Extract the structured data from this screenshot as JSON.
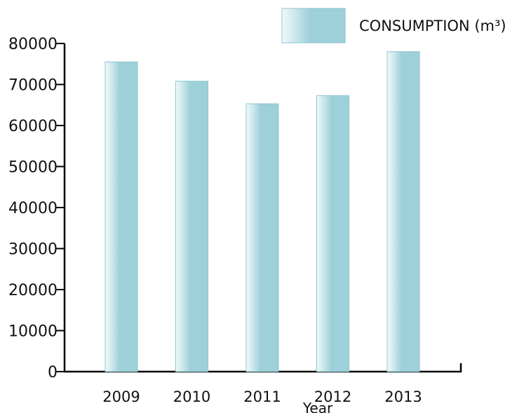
{
  "chart_data": {
    "type": "bar",
    "categories": [
      "2009",
      "2010",
      "2011",
      "2012",
      "2013"
    ],
    "series": [
      {
        "name": "CONSUMPTION (m³)",
        "values": [
          75500,
          70800,
          65300,
          67300,
          78000
        ]
      }
    ],
    "xlabel": "Year",
    "ylabel": "",
    "ylim": [
      0,
      80000
    ],
    "yticks": [
      0,
      10000,
      20000,
      30000,
      40000,
      50000,
      60000,
      70000,
      80000
    ],
    "grid": false,
    "legend_position": "top-right",
    "bar_color": "#9ed0d9",
    "bar_highlight_color": "#f2fafb",
    "bar_border_color": "#8cc5cf"
  }
}
